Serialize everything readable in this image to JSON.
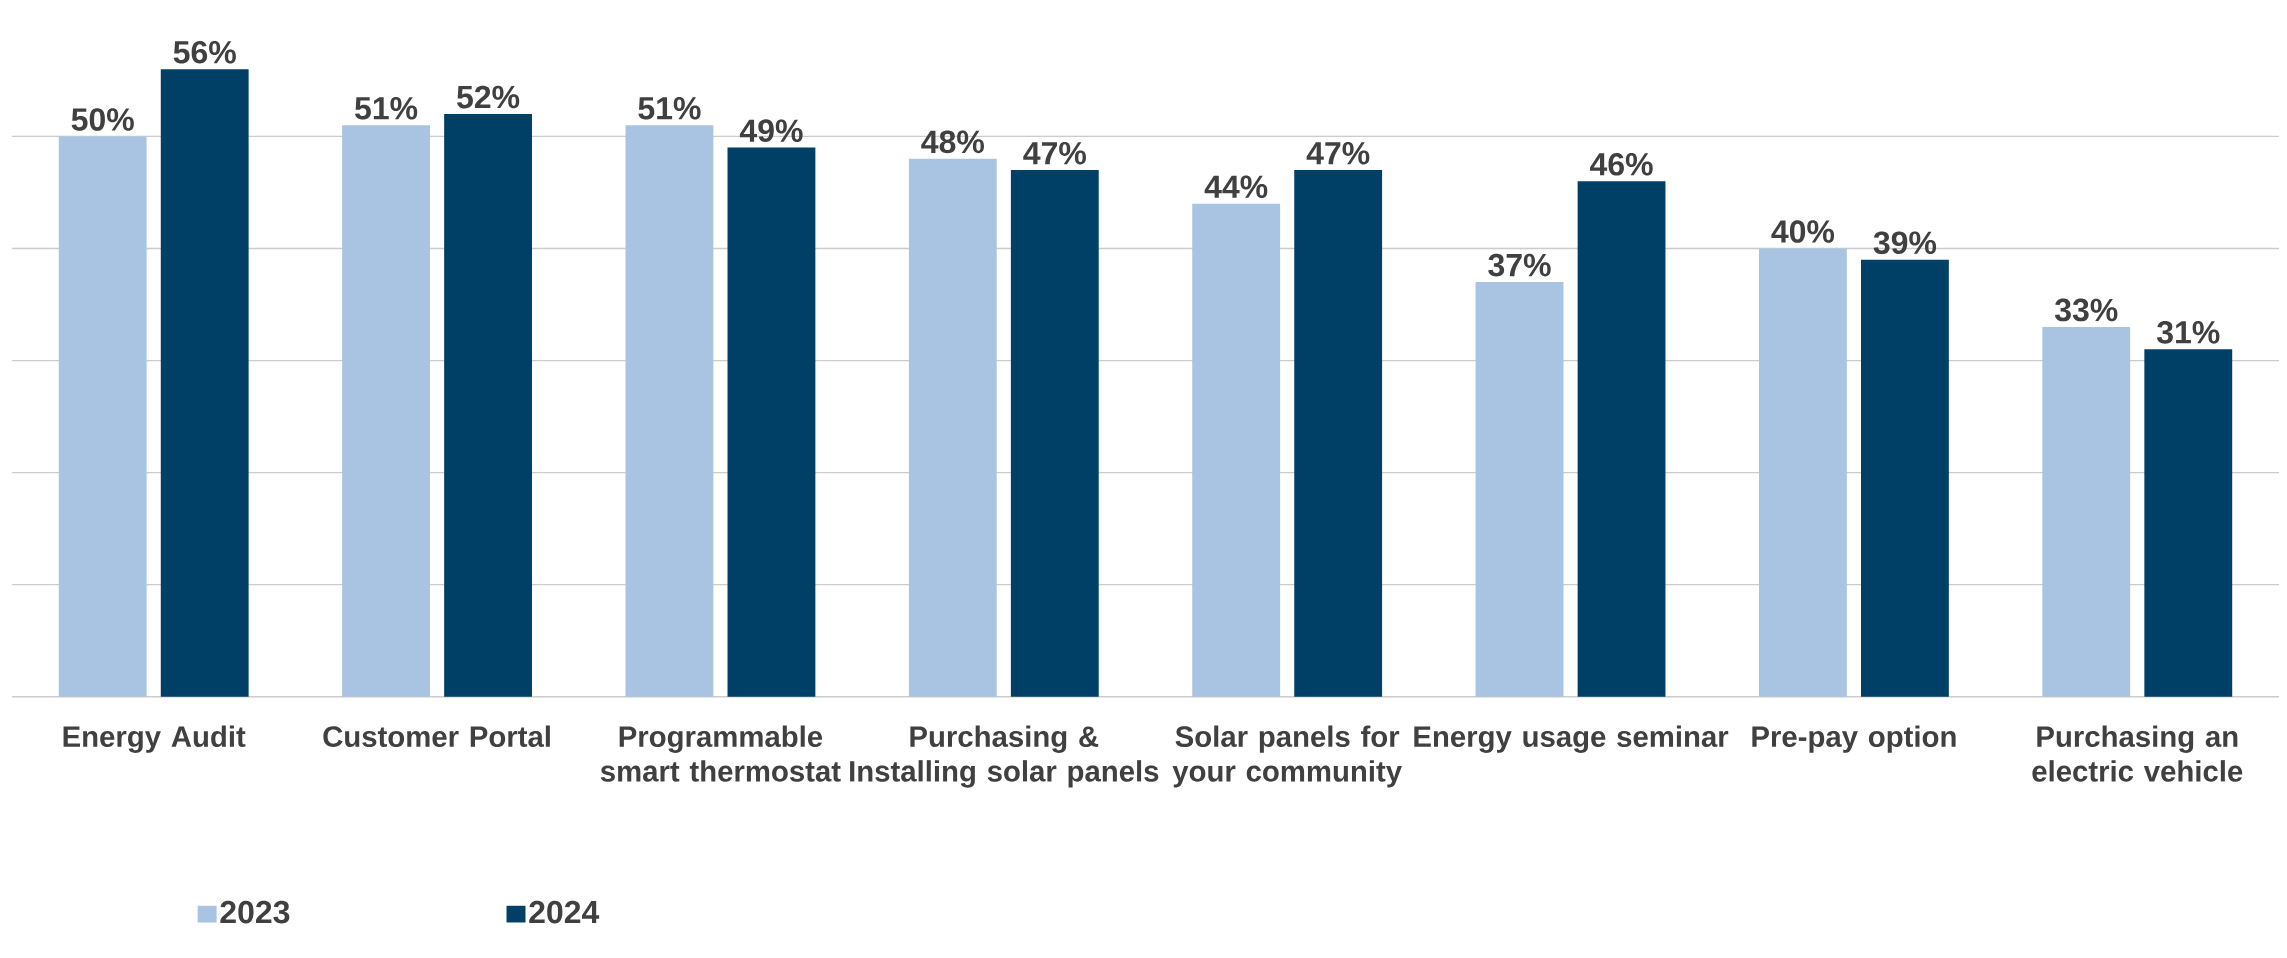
{
  "chart_data": {
    "type": "bar",
    "categories": [
      "Energy Audit",
      "Customer Portal",
      "Programmable smart thermostat",
      "Purchasing & Installing solar panels",
      "Solar panels for your community",
      "Energy usage seminar",
      "Pre-pay option",
      "Purchasing an electric vehicle"
    ],
    "series": [
      {
        "name": "2023",
        "color": "#a9c3e3",
        "values": [
          50,
          51,
          51,
          48,
          44,
          37,
          40,
          33
        ],
        "value_labels": [
          "50%",
          "51%",
          "51%",
          "48%",
          "44%",
          "37%",
          "40%",
          "33%"
        ]
      },
      {
        "name": "2024",
        "color": "#003f66",
        "values": [
          56,
          52,
          49,
          47,
          47,
          46,
          39,
          31
        ],
        "value_labels": [
          "56%",
          "52%",
          "49%",
          "47%",
          "47%",
          "46%",
          "39%",
          "31%"
        ]
      }
    ],
    "yticks": [
      {
        "value": 0,
        "label": null
      },
      {
        "value": 10,
        "label": null
      },
      {
        "value": 20,
        "label": null
      },
      {
        "value": 30,
        "label": null
      },
      {
        "value": 40,
        "label": null
      },
      {
        "value": 50,
        "label": null
      }
    ],
    "tick_labels": "x",
    "grid": "y",
    "legend": "bottom left"
  }
}
